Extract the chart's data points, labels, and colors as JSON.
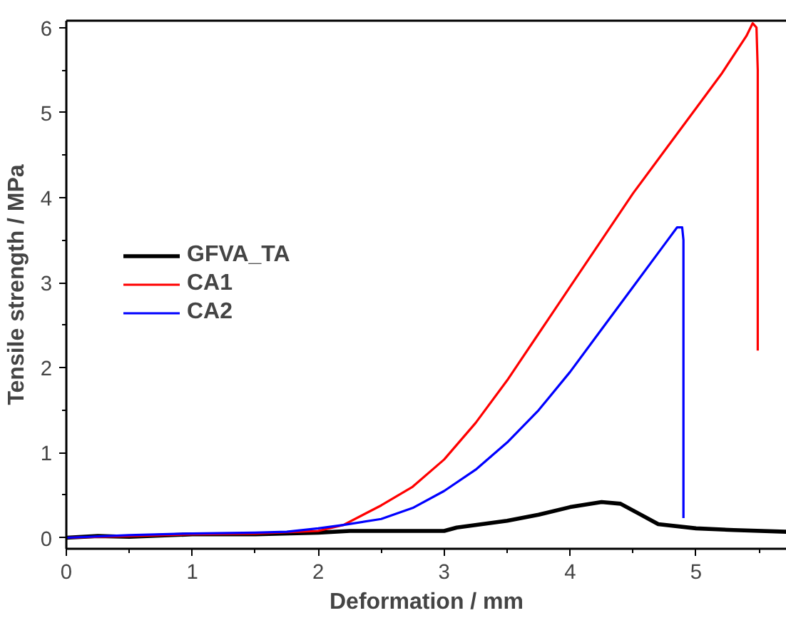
{
  "chart_data": {
    "type": "line",
    "xlabel": "Deformation / mm",
    "ylabel": "Tensile strength / MPa",
    "xlim": [
      0,
      5.72
    ],
    "ylim": [
      -0.13,
      6.08
    ],
    "xticks": [
      0,
      1,
      2,
      3,
      4,
      5
    ],
    "yticks": [
      0,
      1,
      2,
      3,
      4,
      5,
      6
    ],
    "grid": false,
    "legend": "left",
    "marker": "none",
    "line_style": "solid",
    "series": [
      {
        "name": "GFVA_TA",
        "color": "#000000",
        "x": [
          0,
          0.25,
          0.5,
          1,
          1.5,
          2,
          2.25,
          2.5,
          3,
          3.1,
          3.5,
          3.75,
          4,
          4.25,
          4.4,
          4.55,
          4.7,
          5,
          5.3,
          5.72
        ],
        "values": [
          0,
          0.02,
          0.01,
          0.04,
          0.04,
          0.06,
          0.08,
          0.08,
          0.08,
          0.12,
          0.2,
          0.27,
          0.36,
          0.42,
          0.4,
          0.28,
          0.16,
          0.11,
          0.09,
          0.07
        ]
      },
      {
        "name": "CA1",
        "color": "#ff0000",
        "x": [
          0,
          0.5,
          1,
          1.5,
          2,
          2.2,
          2.5,
          2.75,
          3,
          3.25,
          3.5,
          3.75,
          4,
          4.25,
          4.5,
          4.75,
          5,
          5.2,
          5.4,
          5.45,
          5.48,
          5.49,
          5.49
        ],
        "values": [
          0,
          0.02,
          0.04,
          0.05,
          0.08,
          0.15,
          0.38,
          0.6,
          0.92,
          1.35,
          1.85,
          2.4,
          2.95,
          3.5,
          4.05,
          4.55,
          5.05,
          5.45,
          5.9,
          6.05,
          6.0,
          5.5,
          2.2
        ]
      },
      {
        "name": "CA2",
        "color": "#0000ff",
        "x": [
          0,
          0.5,
          1,
          1.5,
          1.75,
          2,
          2.2,
          2.5,
          2.75,
          3,
          3.25,
          3.5,
          3.75,
          4,
          4.25,
          4.5,
          4.75,
          4.85,
          4.89,
          4.9,
          4.9
        ],
        "values": [
          0,
          0.03,
          0.05,
          0.06,
          0.07,
          0.11,
          0.15,
          0.22,
          0.35,
          0.55,
          0.8,
          1.12,
          1.5,
          1.95,
          2.45,
          2.95,
          3.45,
          3.65,
          3.65,
          3.5,
          0.23
        ]
      }
    ]
  }
}
